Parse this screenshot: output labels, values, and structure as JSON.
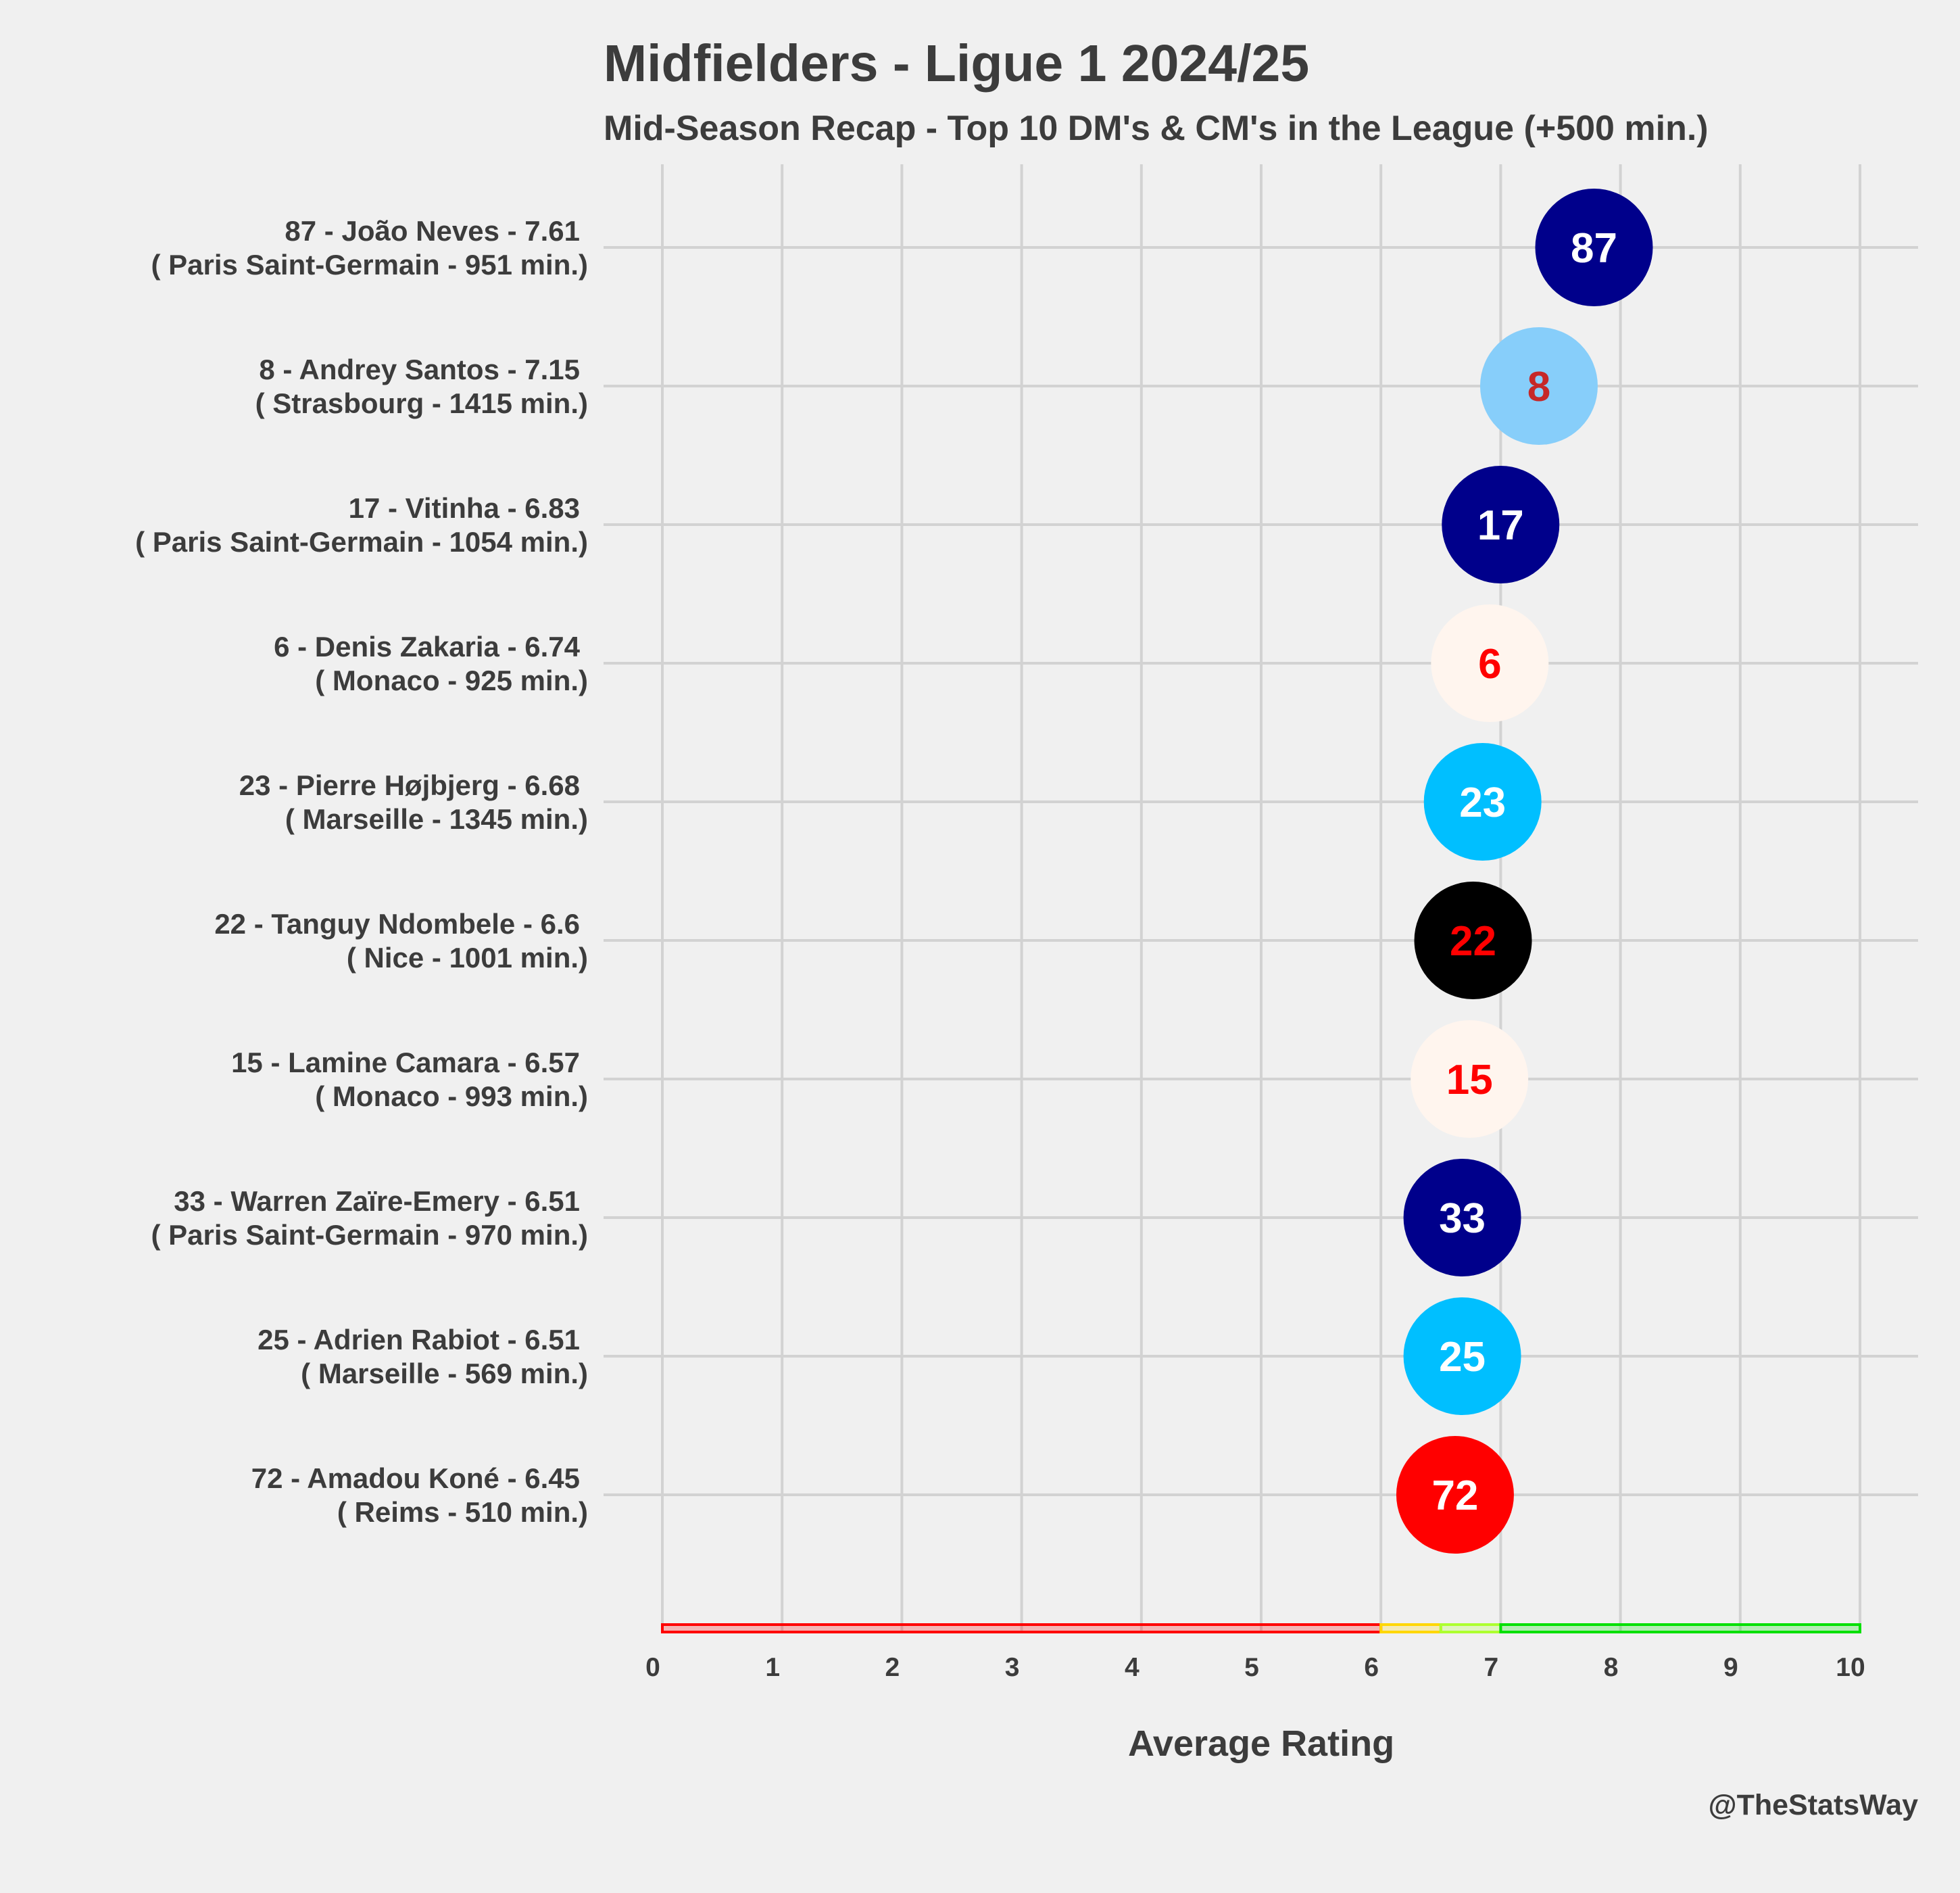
{
  "header": {
    "title": "Midfielders - Ligue 1 2024/25",
    "subtitle": "Mid-Season Recap - Top 10 DM's & CM's in the League (+500 min.)"
  },
  "footer": {
    "credit": "@TheStatsWay"
  },
  "chart_data": {
    "type": "scatter",
    "xlabel": "Average Rating",
    "xlim": [
      0,
      10
    ],
    "x_ticks": [
      "0",
      "1",
      "2",
      "3",
      "4",
      "5",
      "6",
      "7",
      "8",
      "9",
      "10"
    ],
    "grid": true,
    "rating_bands": [
      {
        "from": 0,
        "to": 6,
        "color": "#ff0000"
      },
      {
        "from": 6,
        "to": 6.5,
        "color": "#ffd700"
      },
      {
        "from": 6.5,
        "to": 7,
        "color": "#adff2f"
      },
      {
        "from": 7,
        "to": 10,
        "color": "#00e000"
      }
    ],
    "players": [
      {
        "label_line1": "87 - João Neves - 7.61",
        "label_line2": "( Paris Saint-Germain - 951 min.)",
        "number": "87",
        "rating": 7.61,
        "fill": "#00008b",
        "text_color": "#ffffff"
      },
      {
        "label_line1": "8 - Andrey Santos - 7.15",
        "label_line2": "( Strasbourg - 1415 min.)",
        "number": "8",
        "rating": 7.15,
        "fill": "#87cefa",
        "text_color": "#c62828"
      },
      {
        "label_line1": "17 - Vitinha - 6.83",
        "label_line2": "( Paris Saint-Germain - 1054 min.)",
        "number": "17",
        "rating": 6.83,
        "fill": "#00008b",
        "text_color": "#ffffff"
      },
      {
        "label_line1": "6 - Denis Zakaria - 6.74",
        "label_line2": "( Monaco - 925 min.)",
        "number": "6",
        "rating": 6.74,
        "fill": "#fff5ee",
        "text_color": "#ff0000"
      },
      {
        "label_line1": "23 - Pierre Højbjerg - 6.68",
        "label_line2": "( Marseille - 1345 min.)",
        "number": "23",
        "rating": 6.68,
        "fill": "#00bfff",
        "text_color": "#ffffff"
      },
      {
        "label_line1": "22 - Tanguy Ndombele - 6.6",
        "label_line2": "( Nice - 1001 min.)",
        "number": "22",
        "rating": 6.6,
        "fill": "#000000",
        "text_color": "#ff0000"
      },
      {
        "label_line1": "15 - Lamine Camara - 6.57",
        "label_line2": "( Monaco - 993 min.)",
        "number": "15",
        "rating": 6.57,
        "fill": "#fff5ee",
        "text_color": "#ff0000"
      },
      {
        "label_line1": "33 - Warren Zaïre-Emery - 6.51",
        "label_line2": "( Paris Saint-Germain - 970 min.)",
        "number": "33",
        "rating": 6.51,
        "fill": "#00008b",
        "text_color": "#ffffff"
      },
      {
        "label_line1": "25 - Adrien Rabiot - 6.51",
        "label_line2": "( Marseille - 569 min.)",
        "number": "25",
        "rating": 6.51,
        "fill": "#00bfff",
        "text_color": "#ffffff"
      },
      {
        "label_line1": "72 - Amadou Koné - 6.45",
        "label_line2": "( Reims - 510 min.)",
        "number": "72",
        "rating": 6.45,
        "fill": "#ff0000",
        "text_color": "#ffffff"
      }
    ]
  }
}
